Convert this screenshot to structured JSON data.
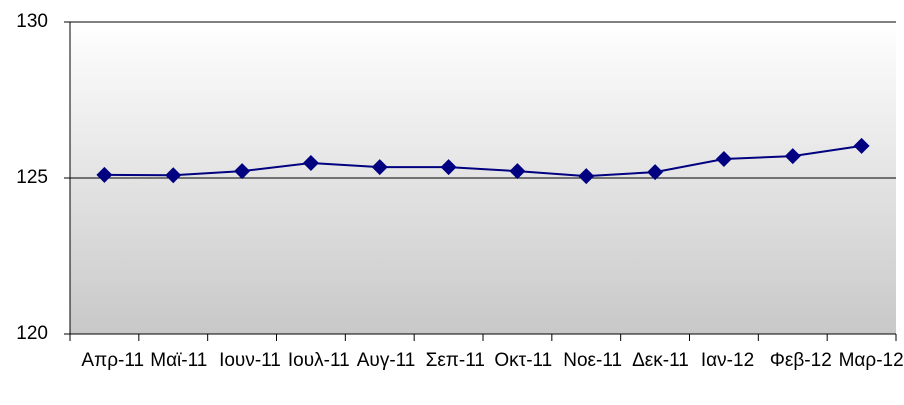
{
  "chart_data": {
    "type": "line",
    "categories": [
      "Απρ-11",
      "Μαϊ-11",
      "Ιουν-11",
      "Ιουλ-11",
      "Αυγ-11",
      "Σεπ-11",
      "Οκτ-11",
      "Νοε-11",
      "Δεκ-11",
      "Ιαν-12",
      "Φεβ-12",
      "Μαρ-12"
    ],
    "series": [
      {
        "color": "#000080",
        "values": [
          125.1,
          125.09,
          125.22,
          125.48,
          125.35,
          125.35,
          125.22,
          125.06,
          125.19,
          125.61,
          125.7,
          126.03
        ]
      }
    ],
    "ylim": [
      120,
      130
    ],
    "yticks": [
      120,
      125,
      130
    ],
    "grid": true
  }
}
